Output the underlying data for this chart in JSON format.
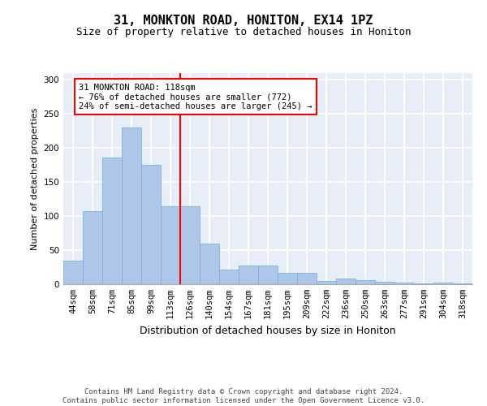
{
  "title1": "31, MONKTON ROAD, HONITON, EX14 1PZ",
  "title2": "Size of property relative to detached houses in Honiton",
  "xlabel": "Distribution of detached houses by size in Honiton",
  "ylabel": "Number of detached properties",
  "categories": [
    "44sqm",
    "58sqm",
    "71sqm",
    "85sqm",
    "99sqm",
    "113sqm",
    "126sqm",
    "140sqm",
    "154sqm",
    "167sqm",
    "181sqm",
    "195sqm",
    "209sqm",
    "222sqm",
    "236sqm",
    "250sqm",
    "263sqm",
    "277sqm",
    "291sqm",
    "304sqm",
    "318sqm"
  ],
  "values": [
    35,
    107,
    186,
    230,
    175,
    115,
    115,
    60,
    22,
    27,
    27,
    17,
    17,
    5,
    8,
    6,
    4,
    2,
    1,
    2,
    1
  ],
  "bar_color": "#aec6e8",
  "bar_edgecolor": "#6baed6",
  "vline_x": 5.5,
  "vline_color": "red",
  "annotation_text": "31 MONKTON ROAD: 118sqm\n← 76% of detached houses are smaller (772)\n24% of semi-detached houses are larger (245) →",
  "annotation_box_color": "white",
  "annotation_box_edgecolor": "red",
  "ylim": [
    0,
    310
  ],
  "yticks": [
    0,
    50,
    100,
    150,
    200,
    250,
    300
  ],
  "footer": "Contains HM Land Registry data © Crown copyright and database right 2024.\nContains public sector information licensed under the Open Government Licence v3.0.",
  "background_color": "#e8eef8",
  "grid_color": "white",
  "title1_fontsize": 11,
  "title2_fontsize": 9,
  "xlabel_fontsize": 9,
  "ylabel_fontsize": 8,
  "footer_fontsize": 6.5,
  "tick_fontsize": 7.5,
  "ann_fontsize": 7.5
}
